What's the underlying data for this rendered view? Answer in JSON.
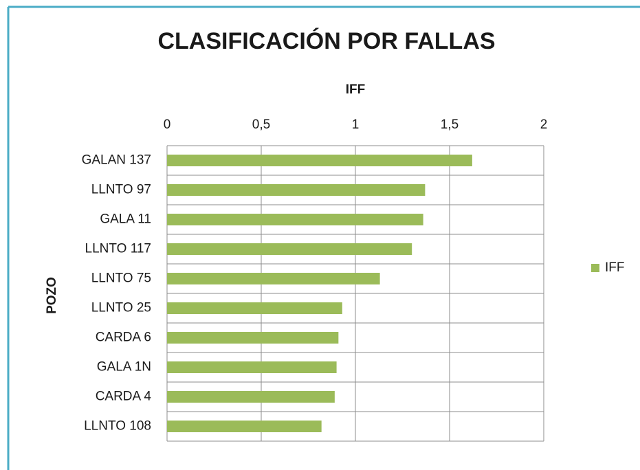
{
  "chart_data": {
    "type": "bar",
    "orientation": "horizontal",
    "title": "CLASIFICACIÓN POR FALLAS",
    "xlabel": "IFF",
    "ylabel": "POZO",
    "categories": [
      "GALAN 137",
      "LLNTO 97",
      "GALA 11",
      "LLNTO 117",
      "LLNTO 75",
      "LLNTO 25",
      "CARDA 6",
      "GALA 1N",
      "CARDA 4",
      "LLNTO 108"
    ],
    "series": [
      {
        "name": "IFF",
        "color": "#9bbb59",
        "values": [
          1.62,
          1.37,
          1.36,
          1.3,
          1.13,
          0.93,
          0.91,
          0.9,
          0.89,
          0.82
        ]
      }
    ],
    "xlim": [
      0,
      2
    ],
    "xticks": [
      0,
      {
        "value": 0.5,
        "label": "0,5"
      },
      1,
      {
        "value": 1.5,
        "label": "1,5"
      },
      2
    ],
    "grid": true,
    "legend": "right"
  }
}
